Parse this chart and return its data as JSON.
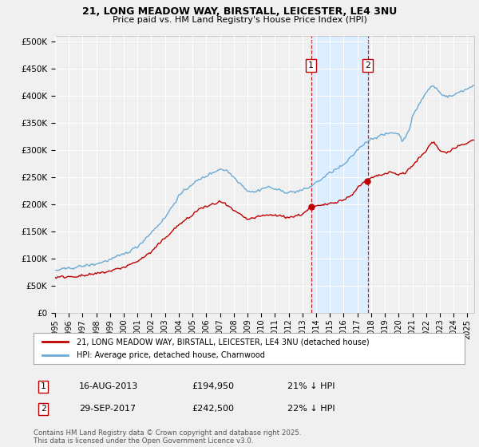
{
  "title_line1": "21, LONG MEADOW WAY, BIRSTALL, LEICESTER, LE4 3NU",
  "title_line2": "Price paid vs. HM Land Registry's House Price Index (HPI)",
  "ylim": [
    0,
    510000
  ],
  "yticks": [
    0,
    50000,
    100000,
    150000,
    200000,
    250000,
    300000,
    350000,
    400000,
    450000,
    500000
  ],
  "ytick_labels": [
    "£0",
    "£50K",
    "£100K",
    "£150K",
    "£200K",
    "£250K",
    "£300K",
    "£350K",
    "£400K",
    "£450K",
    "£500K"
  ],
  "hpi_color": "#6aaad4",
  "price_color": "#c00000",
  "bg_color": "#f0f0f0",
  "plot_bg_color": "#f0f0f0",
  "grid_color": "#ffffff",
  "shade_color": "#ddeeff",
  "sale1_date": "16-AUG-2013",
  "sale1_price": "£194,950",
  "sale1_hpi": "21% ↓ HPI",
  "sale1_x": 2013.62,
  "sale1_y": 194950,
  "sale2_date": "29-SEP-2017",
  "sale2_price": "£242,500",
  "sale2_hpi": "22% ↓ HPI",
  "sale2_x": 2017.75,
  "sale2_y": 242500,
  "legend_label1": "21, LONG MEADOW WAY, BIRSTALL, LEICESTER, LE4 3NU (detached house)",
  "legend_label2": "HPI: Average price, detached house, Charnwood",
  "footer": "Contains HM Land Registry data © Crown copyright and database right 2025.\nThis data is licensed under the Open Government Licence v3.0.",
  "xmin": 1995,
  "xmax": 2025.5
}
